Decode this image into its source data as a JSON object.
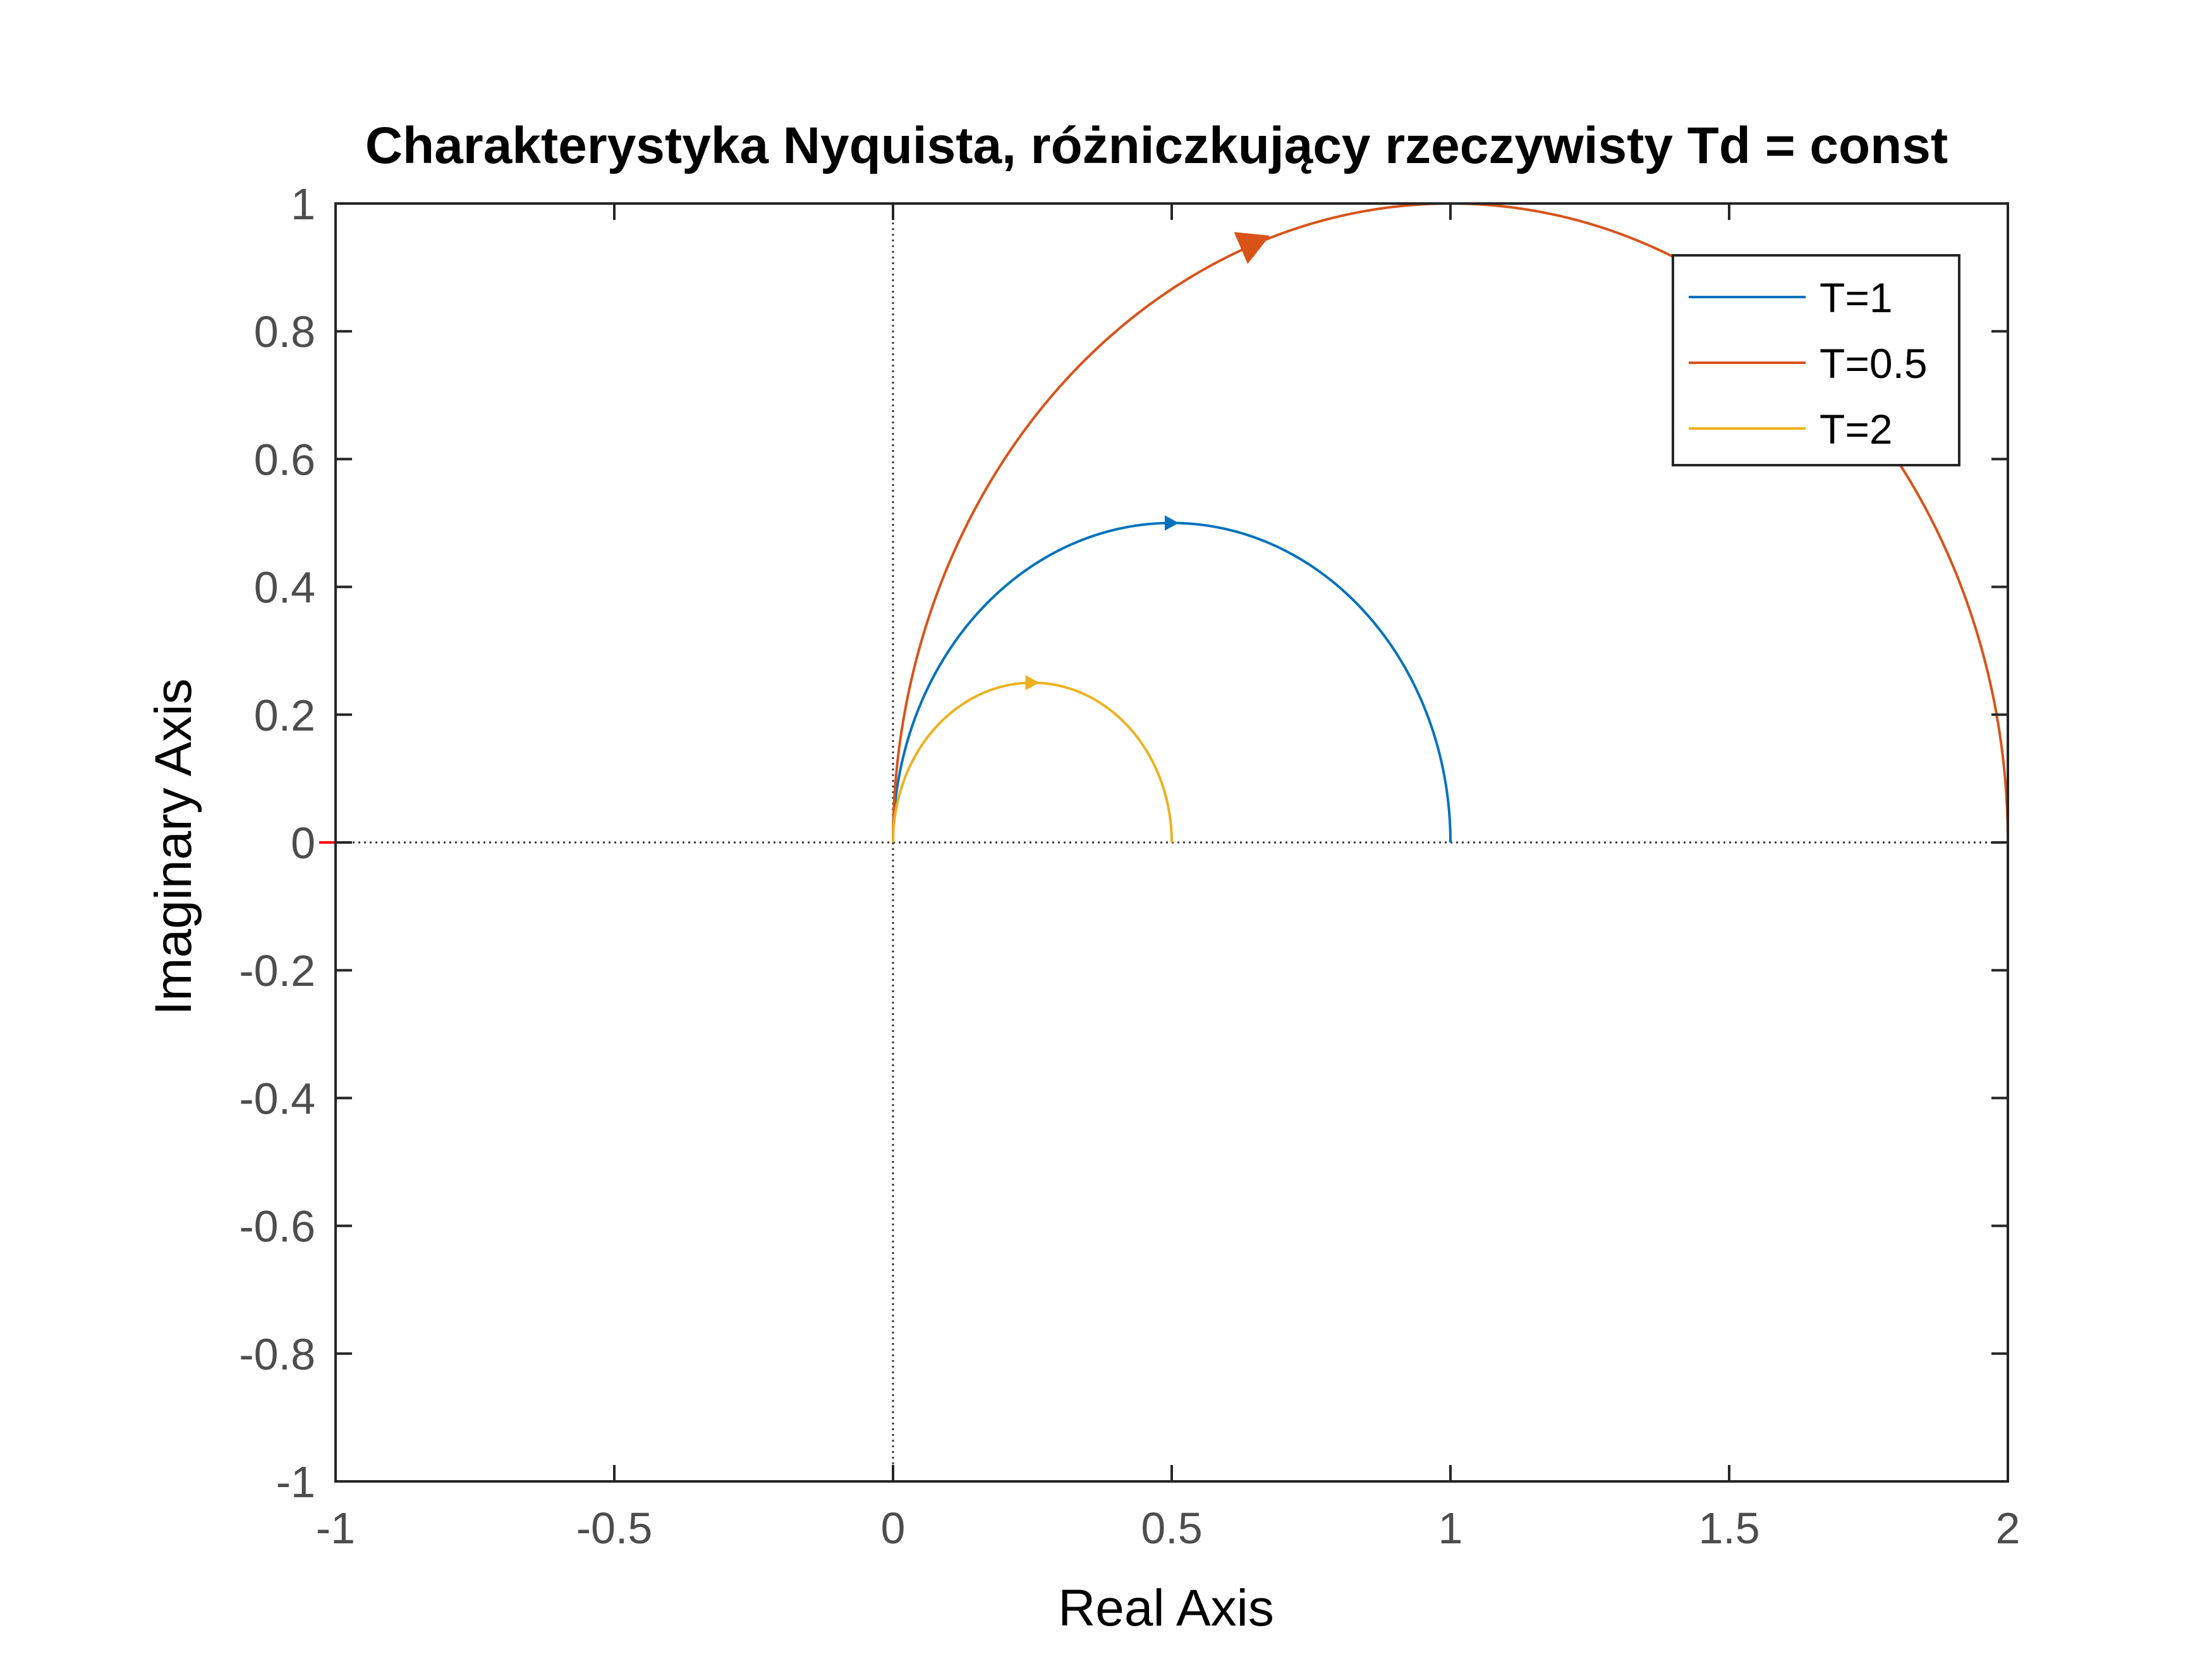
{
  "chart_data": {
    "type": "line",
    "title": "Charakterystyka Nyquista, różniczkujący rzeczywisty Td = const",
    "xlabel": "Real Axis",
    "ylabel": "Imaginary Axis",
    "xlim": [
      -1,
      2
    ],
    "ylim": [
      -1,
      1
    ],
    "xticks": [
      -1,
      -0.5,
      0,
      0.5,
      1,
      1.5,
      2
    ],
    "xtick_labels": [
      "-1",
      "-0.5",
      "0",
      "0.5",
      "1",
      "1.5",
      "2"
    ],
    "yticks": [
      -1,
      -0.8,
      -0.6,
      -0.4,
      -0.2,
      0,
      0.2,
      0.4,
      0.6,
      0.8,
      1
    ],
    "ytick_labels": [
      "-1",
      "-0.8",
      "-0.6",
      "-0.4",
      "-0.2",
      "0",
      "0.2",
      "0.4",
      "0.6",
      "0.8",
      "1"
    ],
    "grid": false,
    "legend_position": "top-right",
    "critical_point": {
      "x": -1,
      "y": 0,
      "color": "#ff0000"
    },
    "series": [
      {
        "name": "T=1",
        "color": "#0072BD",
        "center": [
          0.5,
          0
        ],
        "radius": 0.5,
        "arrow_at": [
          0.5,
          0.5
        ]
      },
      {
        "name": "T=0.5",
        "color": "#D95319",
        "center": [
          1,
          0
        ],
        "radius": 1,
        "arrow_at": [
          0.65,
          0.94
        ]
      },
      {
        "name": "T=2",
        "color": "#EDB120",
        "center": [
          0.25,
          0
        ],
        "radius": 0.25,
        "arrow_at": [
          0.25,
          0.25
        ]
      }
    ]
  }
}
